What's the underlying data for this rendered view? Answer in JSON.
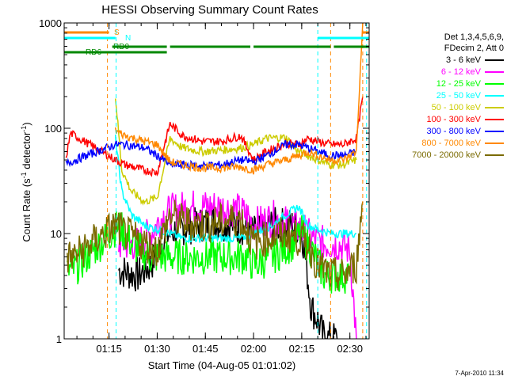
{
  "chart_data": {
    "type": "line",
    "title": "HESSI Observing Summary Count Rates",
    "xlabel": "Start Time (04-Aug-05 01:01:02)",
    "ylabel_main": "Count Rate (s",
    "ylabel_sup1": "-1",
    "ylabel_mid": " detector",
    "ylabel_sup2": "-1",
    "ylabel_end": ")",
    "yscale": "log",
    "ylim": [
      1,
      1000
    ],
    "xlim_minutes": [
      1.03,
      96
    ],
    "y_ticks": [
      "1",
      "10",
      "100",
      "1000"
    ],
    "x_ticks": [
      {
        "m": 15,
        "label": "01:15"
      },
      {
        "m": 30,
        "label": "01:30"
      },
      {
        "m": 45,
        "label": "01:45"
      },
      {
        "m": 60,
        "label": "02:00"
      },
      {
        "m": 75,
        "label": "02:15"
      },
      {
        "m": 90,
        "label": "02:30"
      }
    ],
    "legend_header": [
      "Det 1,3,4,5,6,9,",
      "FDecim 2, Att 0"
    ],
    "series": [
      {
        "name": "3 - 6 keV",
        "color": "#000000",
        "points": [
          [
            18,
            4.5
          ],
          [
            24,
            4
          ],
          [
            28,
            5
          ],
          [
            32,
            9
          ],
          [
            36,
            11
          ],
          [
            42,
            12
          ],
          [
            48,
            13
          ],
          [
            54,
            12
          ],
          [
            58,
            11
          ],
          [
            60,
            10
          ],
          [
            66,
            12
          ],
          [
            72,
            12
          ],
          [
            75,
            11
          ],
          [
            78,
            2
          ],
          [
            80,
            1.5
          ],
          [
            82,
            1
          ],
          [
            86,
            1
          ]
        ]
      },
      {
        "name": "6 - 12 keV",
        "color": "#ff00ff",
        "points": [
          [
            18,
            8
          ],
          [
            24,
            8
          ],
          [
            28,
            10
          ],
          [
            32,
            15
          ],
          [
            36,
            17
          ],
          [
            42,
            18
          ],
          [
            48,
            18
          ],
          [
            54,
            17
          ],
          [
            58,
            15
          ],
          [
            60,
            12
          ],
          [
            66,
            14
          ],
          [
            72,
            12
          ],
          [
            75,
            11
          ],
          [
            78,
            9
          ],
          [
            82,
            8
          ],
          [
            86,
            8
          ],
          [
            90,
            7
          ],
          [
            92,
            1
          ]
        ]
      },
      {
        "name": "12 - 25 keV",
        "color": "#00ff00",
        "points": [
          [
            2,
            4.5
          ],
          [
            4,
            4.5
          ],
          [
            18,
            12
          ],
          [
            22,
            8
          ],
          [
            28,
            6
          ],
          [
            36,
            6
          ],
          [
            48,
            6
          ],
          [
            58,
            6
          ],
          [
            60,
            5
          ],
          [
            66,
            6
          ],
          [
            72,
            8
          ],
          [
            75,
            10
          ],
          [
            78,
            7
          ],
          [
            82,
            4
          ],
          [
            86,
            4
          ],
          [
            90,
            4
          ]
        ]
      },
      {
        "name": "25 - 50 keV",
        "color": "#00ffff",
        "points": [
          [
            17,
            80
          ],
          [
            19,
            25
          ],
          [
            22,
            15
          ],
          [
            26,
            12
          ],
          [
            30,
            11
          ],
          [
            34,
            10
          ],
          [
            38,
            9
          ],
          [
            44,
            9
          ],
          [
            50,
            9
          ],
          [
            56,
            9
          ],
          [
            60,
            10
          ],
          [
            66,
            12
          ],
          [
            70,
            15
          ],
          [
            74,
            18
          ],
          [
            77,
            12
          ],
          [
            80,
            11
          ],
          [
            84,
            10
          ],
          [
            88,
            10
          ],
          [
            92,
            10
          ]
        ]
      },
      {
        "name": "50 - 100 keV",
        "color": "#cccc00",
        "points": [
          [
            17,
            200
          ],
          [
            19,
            40
          ],
          [
            22,
            25
          ],
          [
            26,
            20
          ],
          [
            30,
            22
          ],
          [
            34,
            80
          ],
          [
            38,
            65
          ],
          [
            44,
            60
          ],
          [
            50,
            62
          ],
          [
            56,
            65
          ],
          [
            60,
            70
          ],
          [
            64,
            80
          ],
          [
            70,
            82
          ],
          [
            74,
            60
          ],
          [
            77,
            55
          ],
          [
            80,
            50
          ],
          [
            84,
            45
          ],
          [
            88,
            45
          ],
          [
            92,
            50
          ]
        ]
      },
      {
        "name": "100 - 300 keV",
        "color": "#ff0000",
        "points": [
          [
            1.5,
            50
          ],
          [
            3,
            90
          ],
          [
            17,
            50
          ],
          [
            20,
            45
          ],
          [
            26,
            40
          ],
          [
            30,
            38
          ],
          [
            34,
            110
          ],
          [
            38,
            85
          ],
          [
            44,
            75
          ],
          [
            50,
            75
          ],
          [
            56,
            85
          ],
          [
            60,
            50
          ],
          [
            64,
            60
          ],
          [
            70,
            72
          ],
          [
            74,
            70
          ],
          [
            77,
            80
          ],
          [
            80,
            75
          ],
          [
            84,
            70
          ],
          [
            88,
            70
          ],
          [
            92,
            80
          ],
          [
            94,
            200
          ]
        ]
      },
      {
        "name": "300 - 800 keV",
        "color": "#0000ff",
        "points": [
          [
            1.5,
            45
          ],
          [
            3,
            48
          ],
          [
            17,
            70
          ],
          [
            20,
            70
          ],
          [
            26,
            65
          ],
          [
            30,
            55
          ],
          [
            34,
            45
          ],
          [
            38,
            45
          ],
          [
            44,
            44
          ],
          [
            50,
            45
          ],
          [
            56,
            50
          ],
          [
            60,
            48
          ],
          [
            64,
            55
          ],
          [
            70,
            70
          ],
          [
            74,
            70
          ],
          [
            77,
            65
          ],
          [
            80,
            60
          ],
          [
            84,
            55
          ],
          [
            88,
            55
          ],
          [
            92,
            60
          ]
        ]
      },
      {
        "name": "800 - 7000 keV",
        "color": "#ff8800",
        "points": [
          [
            17,
            95
          ],
          [
            20,
            85
          ],
          [
            26,
            75
          ],
          [
            30,
            70
          ],
          [
            34,
            48
          ],
          [
            38,
            45
          ],
          [
            44,
            42
          ],
          [
            50,
            42
          ],
          [
            56,
            43
          ],
          [
            60,
            40
          ],
          [
            64,
            45
          ],
          [
            70,
            50
          ],
          [
            74,
            55
          ],
          [
            77,
            60
          ],
          [
            80,
            55
          ],
          [
            84,
            50
          ],
          [
            88,
            50
          ],
          [
            92,
            60
          ],
          [
            94,
            1000
          ]
        ]
      },
      {
        "name": "7000 - 20000 keV",
        "color": "#7a6a00",
        "points": [
          [
            2,
            6
          ],
          [
            4,
            6
          ],
          [
            17,
            12
          ],
          [
            20,
            10
          ],
          [
            26,
            8
          ],
          [
            30,
            7
          ],
          [
            34,
            15
          ],
          [
            38,
            13
          ],
          [
            44,
            12
          ],
          [
            50,
            13
          ],
          [
            56,
            14
          ],
          [
            60,
            8
          ],
          [
            64,
            9
          ],
          [
            70,
            10
          ],
          [
            74,
            9
          ],
          [
            77,
            8
          ],
          [
            80,
            5
          ],
          [
            84,
            4
          ],
          [
            88,
            4
          ],
          [
            92,
            5
          ],
          [
            94,
            20
          ]
        ]
      }
    ],
    "flags": [
      {
        "label": "S",
        "color": "#ff8800",
        "segments": [
          [
            1.03,
            15
          ],
          [
            94,
            96
          ]
        ]
      },
      {
        "label": "N",
        "color": "#00ffff",
        "segments": [
          [
            1.03,
            17
          ],
          [
            80,
            96
          ]
        ]
      },
      {
        "label": "RD0",
        "color": "#008800",
        "segments": [
          [
            16,
            33
          ],
          [
            34,
            59
          ],
          [
            60,
            84
          ],
          [
            85,
            96
          ]
        ]
      },
      {
        "label": "RD6",
        "color": "#008800",
        "segments": [
          [
            1.03,
            33
          ]
        ]
      }
    ]
  },
  "timestamp": "7-Apr-2010 11:34"
}
